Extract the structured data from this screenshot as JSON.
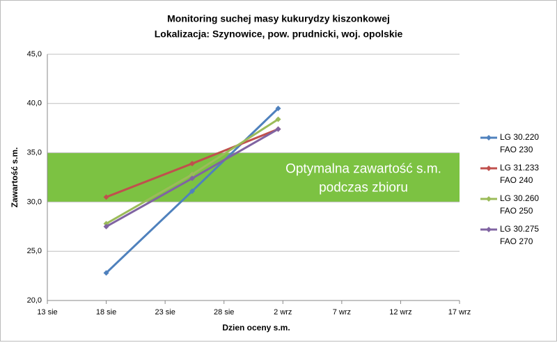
{
  "chart_data": {
    "type": "line",
    "title": [
      "Monitoring suchej masy kukurydzy kiszonkowej",
      "Lokalizacja: Szynowice, pow. prudnicki, woj. opolskie"
    ],
    "x_label": "Dzien oceny s.m.",
    "y_label": "Zawartość s.m.",
    "x": [
      5,
      12.3,
      19.6
    ],
    "xlim": [
      0,
      35
    ],
    "xticks": [
      {
        "value": 0,
        "label": "13 sie"
      },
      {
        "value": 5,
        "label": "18 sie"
      },
      {
        "value": 10,
        "label": "23 sie"
      },
      {
        "value": 15,
        "label": "28 sie"
      },
      {
        "value": 20,
        "label": "2 wrz"
      },
      {
        "value": 25,
        "label": "7 wrz"
      },
      {
        "value": 30,
        "label": "12 wrz"
      },
      {
        "value": 35,
        "label": "17 wrz"
      }
    ],
    "ylim": [
      20,
      45
    ],
    "yticks": [
      {
        "value": 20,
        "label": "20,0"
      },
      {
        "value": 25,
        "label": "25,0"
      },
      {
        "value": 30,
        "label": "30,0"
      },
      {
        "value": 35,
        "label": "35,0"
      },
      {
        "value": 40,
        "label": "40,0"
      },
      {
        "value": 45,
        "label": "45,0"
      }
    ],
    "grid": true,
    "band": {
      "range": [
        30,
        35
      ],
      "color": "#7cc242",
      "label": [
        "Optymalna zawartość s.m.",
        "podczas zbioru"
      ]
    },
    "legend": "right",
    "series": [
      {
        "name": "LG 30.220\nFAO 230",
        "color": "#4f81bd",
        "values": [
          22.8,
          31.1,
          39.5
        ]
      },
      {
        "name": "LG 31.233\nFAO 240",
        "color": "#c0504d",
        "values": [
          30.5,
          33.9,
          37.4
        ]
      },
      {
        "name": "LG 30.260\nFAO 250",
        "color": "#9bbb59",
        "values": [
          27.8,
          32.8,
          38.4
        ]
      },
      {
        "name": "LG 30.275\nFAO 270",
        "color": "#8064a2",
        "values": [
          27.5,
          32.4,
          37.4
        ]
      }
    ]
  }
}
